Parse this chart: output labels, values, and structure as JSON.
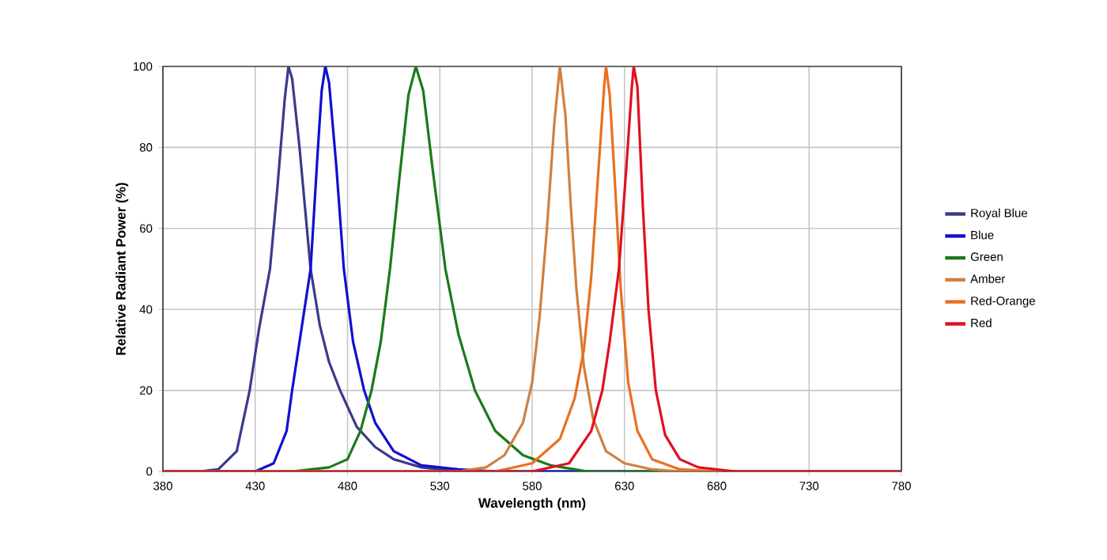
{
  "chart_data": {
    "type": "line",
    "xlabel": "Wavelength (nm)",
    "ylabel": "Relative Radiant Power (%)",
    "xlim": [
      380,
      780
    ],
    "ylim": [
      0,
      100
    ],
    "xticks": [
      380,
      430,
      480,
      530,
      580,
      630,
      680,
      730,
      780
    ],
    "yticks": [
      0,
      20,
      40,
      60,
      80,
      100
    ],
    "grid": true,
    "legend": "right",
    "series": [
      {
        "name": "Royal Blue",
        "color": "#3a3a8c",
        "x": [
          380,
          400,
          410,
          420,
          427,
          432,
          438,
          442,
          446,
          448,
          450,
          454,
          460,
          465,
          470,
          476,
          485,
          495,
          505,
          520,
          540,
          780
        ],
        "values": [
          0,
          0,
          0.5,
          5,
          20,
          35,
          50,
          70,
          92,
          100,
          97,
          80,
          50,
          36,
          27,
          20,
          11,
          6,
          3,
          1,
          0,
          0
        ]
      },
      {
        "name": "Blue",
        "color": "#1010d0",
        "x": [
          380,
          430,
          440,
          447,
          450,
          455,
          460,
          464,
          466,
          468,
          470,
          474,
          478,
          483,
          489,
          495,
          505,
          520,
          540,
          560,
          780
        ],
        "values": [
          0,
          0,
          2,
          10,
          20,
          35,
          50,
          80,
          94,
          100,
          96,
          75,
          50,
          32,
          20,
          12,
          5,
          1.5,
          0.5,
          0,
          0
        ]
      },
      {
        "name": "Green",
        "color": "#1a7a1a",
        "x": [
          380,
          450,
          470,
          480,
          487,
          493,
          498,
          503,
          508,
          513,
          517,
          521,
          526,
          533,
          540,
          549,
          560,
          575,
          590,
          610,
          780
        ],
        "values": [
          0,
          0,
          1,
          3,
          10,
          20,
          32,
          50,
          72,
          93,
          100,
          94,
          75,
          50,
          34,
          20,
          10,
          4,
          1.5,
          0,
          0
        ]
      },
      {
        "name": "Amber",
        "color": "#d08040",
        "x": [
          380,
          540,
          555,
          565,
          575,
          580,
          584,
          588,
          592,
          595,
          598,
          601,
          604,
          608,
          613,
          620,
          630,
          645,
          660,
          780
        ],
        "values": [
          0,
          0,
          1,
          4,
          12,
          22,
          38,
          60,
          86,
          100,
          88,
          65,
          45,
          26,
          13,
          5,
          2,
          0.5,
          0,
          0
        ]
      },
      {
        "name": "Red-Orange",
        "color": "#e87020",
        "x": [
          380,
          560,
          580,
          595,
          603,
          608,
          612,
          616,
          619,
          620,
          622,
          625,
          628,
          632,
          637,
          645,
          660,
          680,
          780
        ],
        "values": [
          0,
          0,
          2,
          8,
          18,
          30,
          48,
          75,
          95,
          100,
          93,
          70,
          45,
          22,
          10,
          3,
          0.5,
          0,
          0
        ]
      },
      {
        "name": "Red",
        "color": "#e01020",
        "x": [
          380,
          580,
          600,
          612,
          618,
          622,
          627,
          631,
          634,
          635,
          637,
          640,
          643,
          647,
          652,
          660,
          670,
          690,
          780
        ],
        "values": [
          0,
          0,
          2,
          10,
          20,
          32,
          50,
          75,
          95,
          100,
          95,
          65,
          40,
          20,
          9,
          3,
          1,
          0,
          0
        ]
      }
    ]
  }
}
